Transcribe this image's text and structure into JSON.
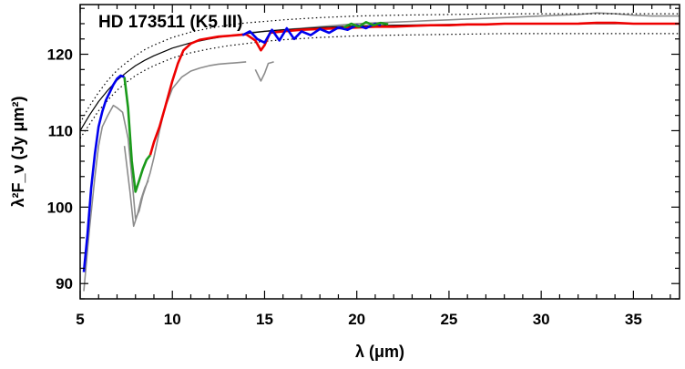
{
  "chart_data": {
    "type": "line",
    "title": "HD 173511 (K5 III)",
    "xlabel": "λ (μm)",
    "ylabel": "λ²F_ν (Jy μm²)",
    "xlim": [
      5.0,
      37.5
    ],
    "ylim": [
      88.0,
      126.5
    ],
    "xticks": [
      5,
      10,
      15,
      20,
      25,
      30,
      35
    ],
    "yticks": [
      90,
      100,
      110,
      120
    ],
    "grid": false,
    "legend": "none",
    "colors": {
      "blue": "#0000ee",
      "green": "#1a9a1a",
      "red": "#ee0000",
      "gray": "#8c8c8c",
      "model": "#000000"
    },
    "series": [
      {
        "color": "gray",
        "style": "solid",
        "x": [
          5.2,
          5.5,
          5.8,
          6.0,
          6.2,
          6.5,
          6.8,
          7.0,
          7.3,
          7.6,
          7.8,
          8.0,
          8.2,
          8.4,
          8.6,
          8.8,
          9.0,
          9.3,
          9.6,
          10.0,
          10.5,
          11.0,
          11.5,
          12.0,
          12.5,
          13.0,
          13.5,
          14.0
        ],
        "y": [
          89.0,
          97.0,
          104.0,
          108.0,
          110.5,
          112.0,
          113.3,
          113.0,
          112.4,
          109.0,
          104.0,
          98.5,
          99.5,
          101.5,
          103.0,
          104.5,
          106.5,
          110.0,
          113.0,
          115.5,
          117.0,
          117.8,
          118.2,
          118.5,
          118.7,
          118.8,
          118.9,
          119.0
        ]
      },
      {
        "color": "gray",
        "style": "solid",
        "x": [
          14.5,
          14.8,
          15.0,
          15.2,
          15.5
        ],
        "y": [
          118.0,
          116.5,
          117.5,
          118.8,
          119.0
        ]
      },
      {
        "color": "gray",
        "style": "solid",
        "x": [
          7.4,
          7.7,
          7.9,
          8.1,
          8.3,
          8.5,
          8.7
        ],
        "y": [
          108.0,
          102.0,
          97.5,
          99.0,
          101.0,
          102.5,
          103.5
        ]
      },
      {
        "color": "gray",
        "style": "solid",
        "x": [
          14.0,
          15.0,
          16.0,
          17.0,
          18.0,
          19.0,
          20.0,
          21.0,
          22.0,
          23.0,
          24.0,
          25.0,
          26.0,
          27.0,
          28.0,
          29.0,
          30.0,
          31.0,
          32.0,
          33.0,
          34.0,
          35.0,
          36.0,
          37.5
        ],
        "y": [
          122.8,
          123.0,
          123.2,
          123.4,
          123.6,
          123.8,
          124.0,
          124.1,
          124.2,
          124.3,
          124.4,
          124.5,
          124.6,
          124.7,
          124.8,
          124.9,
          125.0,
          125.1,
          125.2,
          125.4,
          125.3,
          125.1,
          125.0,
          125.0
        ]
      },
      {
        "color": "blue",
        "style": "solid",
        "x": [
          5.2,
          5.4,
          5.6,
          5.8,
          6.0,
          6.2,
          6.4,
          6.6,
          6.8,
          7.0,
          7.2,
          7.4
        ],
        "y": [
          91.5,
          96.5,
          102.5,
          107.0,
          110.5,
          112.5,
          114.0,
          115.0,
          116.0,
          116.8,
          117.2,
          117.0
        ]
      },
      {
        "color": "green",
        "style": "solid",
        "x": [
          7.4,
          7.6,
          7.8,
          8.0,
          8.2,
          8.4,
          8.6,
          8.8
        ],
        "y": [
          117.0,
          113.0,
          106.0,
          102.0,
          103.5,
          105.0,
          106.2,
          106.8
        ]
      },
      {
        "color": "red",
        "style": "solid",
        "x": [
          8.8,
          9.0,
          9.3,
          9.6,
          10.0,
          10.3,
          10.6,
          11.0,
          11.5,
          12.0,
          12.5,
          13.0,
          13.5,
          14.0,
          14.5,
          14.8,
          15.0,
          15.3,
          16.0,
          17.0,
          18.0,
          19.0,
          20.0,
          21.0,
          22.0,
          23.0,
          24.0,
          25.0,
          26.0,
          27.0,
          28.0,
          29.0,
          30.0,
          31.0,
          32.0,
          33.0,
          34.0,
          35.0,
          36.0,
          37.5
        ],
        "y": [
          106.8,
          108.5,
          110.5,
          113.0,
          116.5,
          118.8,
          120.5,
          121.4,
          121.9,
          122.1,
          122.3,
          122.4,
          122.5,
          122.6,
          121.8,
          120.5,
          121.2,
          122.8,
          123.0,
          123.2,
          123.3,
          123.4,
          123.5,
          123.6,
          123.6,
          123.7,
          123.8,
          123.8,
          123.9,
          123.9,
          124.0,
          124.0,
          124.0,
          124.0,
          124.0,
          124.1,
          124.1,
          124.0,
          124.0,
          124.0
        ]
      },
      {
        "color": "blue",
        "style": "solid",
        "x": [
          13.8,
          14.2,
          14.6,
          15.0,
          15.4,
          15.8,
          16.2,
          16.6,
          17.0,
          17.5,
          18.0,
          18.5,
          19.0,
          19.5,
          20.0,
          20.5,
          21.0,
          21.3
        ],
        "y": [
          122.5,
          123.0,
          122.0,
          121.5,
          123.2,
          121.8,
          123.4,
          122.0,
          123.0,
          122.5,
          123.3,
          122.8,
          123.5,
          123.2,
          123.8,
          123.4,
          124.0,
          123.8
        ]
      },
      {
        "color": "green",
        "style": "solid",
        "x": [
          19.3,
          19.7,
          20.1,
          20.5,
          20.9,
          21.3,
          21.7
        ],
        "y": [
          123.5,
          124.0,
          123.6,
          124.2,
          123.8,
          124.1,
          123.9
        ]
      },
      {
        "color": "model",
        "style": "solid",
        "x": [
          5.0,
          5.5,
          6.0,
          6.5,
          7.0,
          7.5,
          8.0,
          8.5,
          9.0,
          10.0,
          11.0,
          12.0,
          13.0,
          14.0,
          15.0,
          16.0,
          18.0,
          20.0,
          22.0,
          25.0,
          28.0,
          31.0,
          34.0,
          37.5
        ],
        "y": [
          110.0,
          112.0,
          113.8,
          115.3,
          116.6,
          117.6,
          118.5,
          119.2,
          119.8,
          120.8,
          121.5,
          122.0,
          122.4,
          122.7,
          123.0,
          123.2,
          123.5,
          123.7,
          123.8,
          123.9,
          124.0,
          124.0,
          124.0,
          124.0
        ]
      },
      {
        "color": "model",
        "style": "dotted",
        "x": [
          5.0,
          5.5,
          6.0,
          6.5,
          7.0,
          7.5,
          8.0,
          8.5,
          9.0,
          10.0,
          11.0,
          12.0,
          13.0,
          14.0,
          15.0,
          16.0,
          18.0,
          20.0,
          22.0,
          25.0,
          28.0,
          31.0,
          34.0,
          37.5
        ],
        "y": [
          111.0,
          113.2,
          115.0,
          116.6,
          117.9,
          118.9,
          119.8,
          120.6,
          121.2,
          122.2,
          122.9,
          123.4,
          123.8,
          124.1,
          124.3,
          124.5,
          124.8,
          125.0,
          125.1,
          125.2,
          125.3,
          125.3,
          125.3,
          125.3
        ]
      },
      {
        "color": "model",
        "style": "dotted",
        "x": [
          5.0,
          5.5,
          6.0,
          6.5,
          7.0,
          7.5,
          8.0,
          8.5,
          9.0,
          10.0,
          11.0,
          12.0,
          13.0,
          14.0,
          15.0,
          16.0,
          18.0,
          20.0,
          22.0,
          25.0,
          28.0,
          31.0,
          34.0,
          37.5
        ],
        "y": [
          109.0,
          110.8,
          112.6,
          114.0,
          115.3,
          116.3,
          117.2,
          117.9,
          118.5,
          119.5,
          120.2,
          120.7,
          121.1,
          121.4,
          121.7,
          121.9,
          122.2,
          122.4,
          122.5,
          122.6,
          122.7,
          122.7,
          122.7,
          122.7
        ]
      }
    ]
  }
}
